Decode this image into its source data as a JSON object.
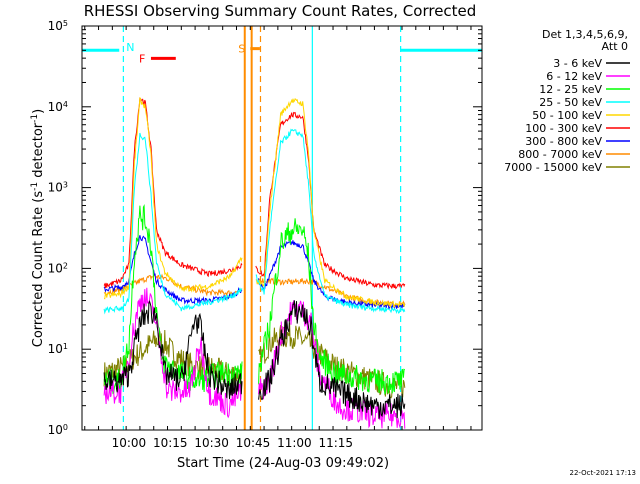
{
  "chart_data": {
    "type": "line",
    "title": "RHESSI Observing Summary Count Rates, Corrected",
    "xlabel": "Start Time (24-Aug-03 09:49:02)",
    "ylabel_main": "Corrected Count Rate (s",
    "ylabel_sup": "-1",
    "ylabel_tail": " detector",
    "ylabel_sup2": "-1",
    "ylabel_close": ")",
    "xlim_min": [
      -6,
      139
    ],
    "ylim_log10": [
      0,
      5
    ],
    "xticks": [
      {
        "label": "10:00",
        "t": 11
      },
      {
        "label": "10:15",
        "t": 26
      },
      {
        "label": "10:30",
        "t": 41
      },
      {
        "label": "10:45",
        "t": 56
      },
      {
        "label": "11:00",
        "t": 71
      },
      {
        "label": "11:15",
        "t": 86
      }
    ],
    "yticks": [
      {
        "base": "10",
        "exp": "0",
        "log": 0
      },
      {
        "base": "10",
        "exp": "1",
        "log": 1
      },
      {
        "base": "10",
        "exp": "2",
        "log": 2
      },
      {
        "base": "10",
        "exp": "3",
        "log": 3
      },
      {
        "base": "10",
        "exp": "4",
        "log": 4
      },
      {
        "base": "10",
        "exp": "5",
        "log": 5
      }
    ],
    "legend_header": [
      "Det 1,3,4,5,6,9,",
      "Att 0"
    ],
    "series": [
      {
        "name": "3 - 6 keV",
        "color": "#000000",
        "seg1": [
          [
            2,
            4
          ],
          [
            8,
            4
          ],
          [
            11,
            5
          ],
          [
            14,
            15
          ],
          [
            16,
            25
          ],
          [
            19,
            30
          ],
          [
            21,
            25
          ],
          [
            24,
            5
          ],
          [
            30,
            4
          ],
          [
            35,
            25
          ],
          [
            37,
            18
          ],
          [
            40,
            5
          ],
          [
            47,
            3
          ],
          [
            52,
            4
          ]
        ],
        "seg2": [
          [
            58,
            3
          ],
          [
            62,
            4
          ],
          [
            66,
            12
          ],
          [
            70,
            28
          ],
          [
            74,
            30
          ],
          [
            77,
            18
          ],
          [
            80,
            4
          ],
          [
            87,
            3
          ],
          [
            100,
            2
          ],
          [
            111,
            2
          ]
        ]
      },
      {
        "name": "6 - 12 keV",
        "color": "#ff00ff",
        "seg1": [
          [
            2,
            3
          ],
          [
            8,
            3
          ],
          [
            11,
            8
          ],
          [
            14,
            30
          ],
          [
            16,
            45
          ],
          [
            18,
            40
          ],
          [
            20,
            30
          ],
          [
            22,
            12
          ],
          [
            25,
            3
          ],
          [
            33,
            3
          ],
          [
            37,
            12
          ],
          [
            40,
            3
          ],
          [
            47,
            2
          ],
          [
            52,
            3
          ]
        ],
        "seg2": [
          [
            58,
            3
          ],
          [
            62,
            4
          ],
          [
            66,
            15
          ],
          [
            70,
            30
          ],
          [
            73,
            32
          ],
          [
            77,
            22
          ],
          [
            80,
            5
          ],
          [
            87,
            2
          ],
          [
            100,
            1.5
          ],
          [
            111,
            1.5
          ]
        ]
      },
      {
        "name": "12 - 25 keV",
        "color": "#00ff00",
        "seg1": [
          [
            2,
            4
          ],
          [
            8,
            4
          ],
          [
            11,
            12
          ],
          [
            13,
            150
          ],
          [
            15,
            450
          ],
          [
            17,
            400
          ],
          [
            19,
            200
          ],
          [
            21,
            30
          ],
          [
            23,
            7
          ],
          [
            30,
            5
          ],
          [
            36,
            4
          ],
          [
            44,
            5
          ],
          [
            52,
            5
          ]
        ],
        "seg2": [
          [
            58,
            5
          ],
          [
            62,
            20
          ],
          [
            66,
            200
          ],
          [
            70,
            300
          ],
          [
            74,
            300
          ],
          [
            76,
            150
          ],
          [
            78,
            20
          ],
          [
            80,
            8
          ],
          [
            86,
            5
          ],
          [
            100,
            4
          ],
          [
            111,
            4
          ]
        ]
      },
      {
        "name": "25 - 50 keV",
        "color": "#00ffff",
        "seg1": [
          [
            2,
            30
          ],
          [
            8,
            32
          ],
          [
            11,
            40
          ],
          [
            13,
            1000
          ],
          [
            15,
            4500
          ],
          [
            17,
            4000
          ],
          [
            19,
            800
          ],
          [
            21,
            120
          ],
          [
            24,
            50
          ],
          [
            30,
            32
          ],
          [
            40,
            38
          ],
          [
            48,
            45
          ],
          [
            52,
            55
          ]
        ],
        "seg2": [
          [
            57,
            80
          ],
          [
            60,
            50
          ],
          [
            62,
            300
          ],
          [
            66,
            3500
          ],
          [
            70,
            5000
          ],
          [
            74,
            4500
          ],
          [
            76,
            1200
          ],
          [
            78,
            150
          ],
          [
            82,
            45
          ],
          [
            90,
            35
          ],
          [
            100,
            32
          ],
          [
            111,
            30
          ]
        ]
      },
      {
        "name": "50 - 100 keV",
        "color": "#ffd700",
        "seg1": [
          [
            2,
            45
          ],
          [
            8,
            48
          ],
          [
            11,
            60
          ],
          [
            13,
            2000
          ],
          [
            15,
            12000
          ],
          [
            17,
            10000
          ],
          [
            19,
            2500
          ],
          [
            21,
            200
          ],
          [
            24,
            90
          ],
          [
            30,
            55
          ],
          [
            40,
            60
          ],
          [
            48,
            80
          ],
          [
            52,
            140
          ]
        ],
        "seg2": [
          [
            57,
            70
          ],
          [
            60,
            60
          ],
          [
            62,
            500
          ],
          [
            66,
            8000
          ],
          [
            70,
            12000
          ],
          [
            74,
            11000
          ],
          [
            76,
            3000
          ],
          [
            78,
            300
          ],
          [
            82,
            70
          ],
          [
            90,
            45
          ],
          [
            100,
            38
          ],
          [
            111,
            35
          ]
        ]
      },
      {
        "name": "100 - 300 keV",
        "color": "#ff0000",
        "seg1": [
          [
            2,
            60
          ],
          [
            8,
            70
          ],
          [
            11,
            110
          ],
          [
            13,
            3000
          ],
          [
            15,
            13000
          ],
          [
            17,
            11000
          ],
          [
            19,
            3000
          ],
          [
            21,
            300
          ],
          [
            24,
            160
          ],
          [
            30,
            110
          ],
          [
            40,
            85
          ],
          [
            48,
            95
          ],
          [
            52,
            110
          ]
        ],
        "seg2": [
          [
            57,
            100
          ],
          [
            60,
            80
          ],
          [
            62,
            700
          ],
          [
            66,
            6000
          ],
          [
            70,
            8000
          ],
          [
            74,
            7500
          ],
          [
            76,
            2500
          ],
          [
            78,
            300
          ],
          [
            82,
            110
          ],
          [
            90,
            75
          ],
          [
            100,
            62
          ],
          [
            111,
            60
          ]
        ]
      },
      {
        "name": "300 - 800 keV",
        "color": "#0000ff",
        "seg1": [
          [
            2,
            55
          ],
          [
            8,
            58
          ],
          [
            11,
            70
          ],
          [
            13,
            150
          ],
          [
            15,
            250
          ],
          [
            17,
            220
          ],
          [
            19,
            120
          ],
          [
            21,
            70
          ],
          [
            24,
            55
          ],
          [
            30,
            40
          ],
          [
            40,
            40
          ],
          [
            48,
            45
          ],
          [
            52,
            55
          ]
        ],
        "seg2": [
          [
            58,
            70
          ],
          [
            60,
            55
          ],
          [
            62,
            80
          ],
          [
            66,
            180
          ],
          [
            70,
            210
          ],
          [
            74,
            190
          ],
          [
            76,
            120
          ],
          [
            78,
            70
          ],
          [
            82,
            45
          ],
          [
            90,
            38
          ],
          [
            100,
            35
          ],
          [
            111,
            34
          ]
        ]
      },
      {
        "name": "800 - 7000 keV",
        "color": "#ff8c00",
        "seg1": [
          [
            2,
            50
          ],
          [
            8,
            55
          ],
          [
            11,
            60
          ],
          [
            15,
            70
          ],
          [
            20,
            80
          ],
          [
            25,
            75
          ],
          [
            30,
            60
          ],
          [
            40,
            50
          ],
          [
            48,
            50
          ],
          [
            52,
            52
          ]
        ],
        "seg2": [
          [
            58,
            72
          ],
          [
            62,
            70
          ],
          [
            66,
            68
          ],
          [
            70,
            68
          ],
          [
            74,
            70
          ],
          [
            78,
            68
          ],
          [
            84,
            55
          ],
          [
            90,
            45
          ],
          [
            100,
            38
          ],
          [
            111,
            36
          ]
        ]
      },
      {
        "name": "7000 - 15000 keV",
        "color": "#808000",
        "seg1": [
          [
            2,
            5
          ],
          [
            6,
            5.5
          ],
          [
            9,
            6
          ],
          [
            12,
            7.5
          ],
          [
            15,
            9
          ],
          [
            18,
            11
          ],
          [
            21,
            13
          ],
          [
            24,
            12
          ],
          [
            27,
            9
          ],
          [
            31,
            7
          ],
          [
            35,
            6
          ],
          [
            40,
            6
          ],
          [
            46,
            5
          ],
          [
            52,
            5
          ]
        ],
        "seg2": [
          [
            58,
            7
          ],
          [
            60,
            9
          ],
          [
            62,
            12
          ],
          [
            66,
            14
          ],
          [
            70,
            15
          ],
          [
            72,
            14
          ],
          [
            76,
            12
          ],
          [
            80,
            9
          ],
          [
            86,
            6
          ],
          [
            92,
            5
          ],
          [
            100,
            4
          ],
          [
            106,
            3.5
          ],
          [
            111,
            3.5
          ]
        ]
      }
    ],
    "markers": [
      {
        "label": "N",
        "color": "#00ffff",
        "t": 7.5,
        "line": "dashed"
      },
      {
        "label": "F",
        "color": "#ff0000",
        "t_start": 19,
        "t_end": 28,
        "level_log": 4.6
      },
      {
        "label": "S",
        "color": "#ff8c00",
        "t_start": 55,
        "t_end": 58.5,
        "level_log": 4.72
      }
    ],
    "night_bands": [
      {
        "t_start": -6,
        "t_end": 7.5,
        "level_log": 4.7
      },
      {
        "t_start": 109.5,
        "t_end": 139,
        "level_log": 4.7
      }
    ],
    "vertical_lines": [
      {
        "t": 9.0,
        "color": "#00ffff",
        "style": "dashed"
      },
      {
        "t": 53.0,
        "color": "#ff8c00",
        "style": "solid"
      },
      {
        "t": 55.5,
        "color": "#ff8c00",
        "style": "solid"
      },
      {
        "t": 58.7,
        "color": "#ff8c00",
        "style": "dashed"
      },
      {
        "t": 77.5,
        "color": "#00ffff",
        "style": "solid"
      },
      {
        "t": 109.5,
        "color": "#00ffff",
        "style": "dashed"
      }
    ]
  },
  "footer": {
    "timestamp": "22-Oct-2021 17:13"
  }
}
